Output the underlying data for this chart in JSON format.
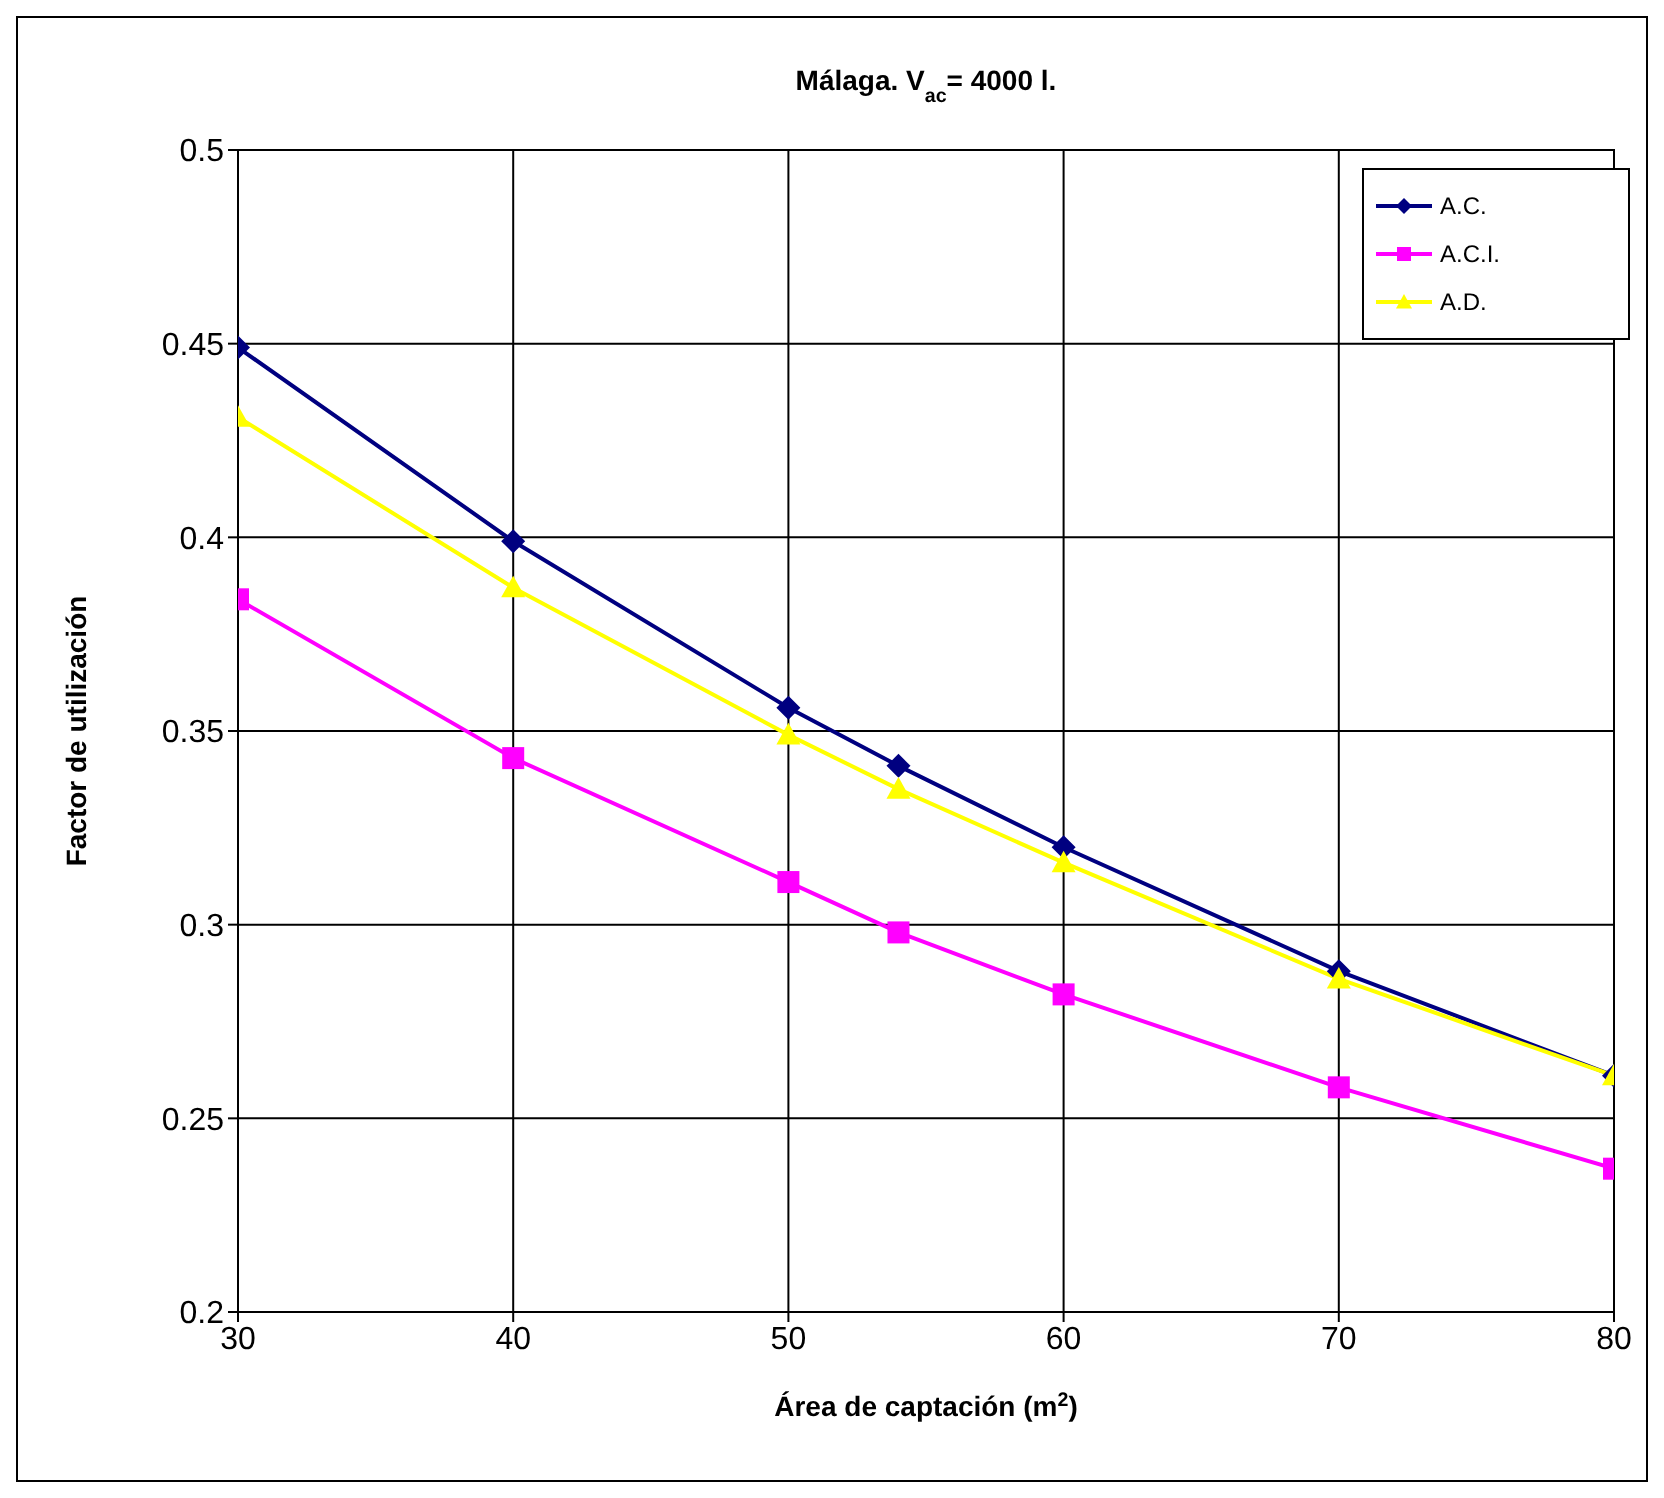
{
  "chart_data": {
    "type": "line",
    "title": "Málaga. V$_{ac}$= 4000 l.",
    "xlabel": "Área de captación (m$^{2}$)",
    "ylabel": "Factor de utilización",
    "x": [
      30,
      40,
      50,
      54,
      60,
      70,
      80
    ],
    "series": [
      {
        "name": "A.C.",
        "color": "#000080",
        "marker": "diamond",
        "values": [
          0.449,
          0.399,
          0.356,
          0.341,
          0.32,
          0.288,
          0.261
        ]
      },
      {
        "name": "A.C.I.",
        "color": "#ff00ff",
        "marker": "square",
        "values": [
          0.384,
          0.343,
          0.311,
          0.298,
          0.282,
          0.258,
          0.237
        ]
      },
      {
        "name": "A.D.",
        "color": "#ffff00",
        "marker": "triangle",
        "values": [
          0.431,
          0.387,
          0.349,
          0.335,
          0.316,
          0.286,
          0.261
        ]
      }
    ],
    "xlim": [
      30,
      80
    ],
    "xticks": [
      30,
      40,
      50,
      60,
      70,
      80
    ],
    "ylim": [
      0.2,
      0.5
    ],
    "yticks": [
      0.2,
      0.25,
      0.3,
      0.35,
      0.4,
      0.45,
      0.5
    ],
    "grid": true,
    "legend": "top right",
    "line_style": "solid"
  }
}
